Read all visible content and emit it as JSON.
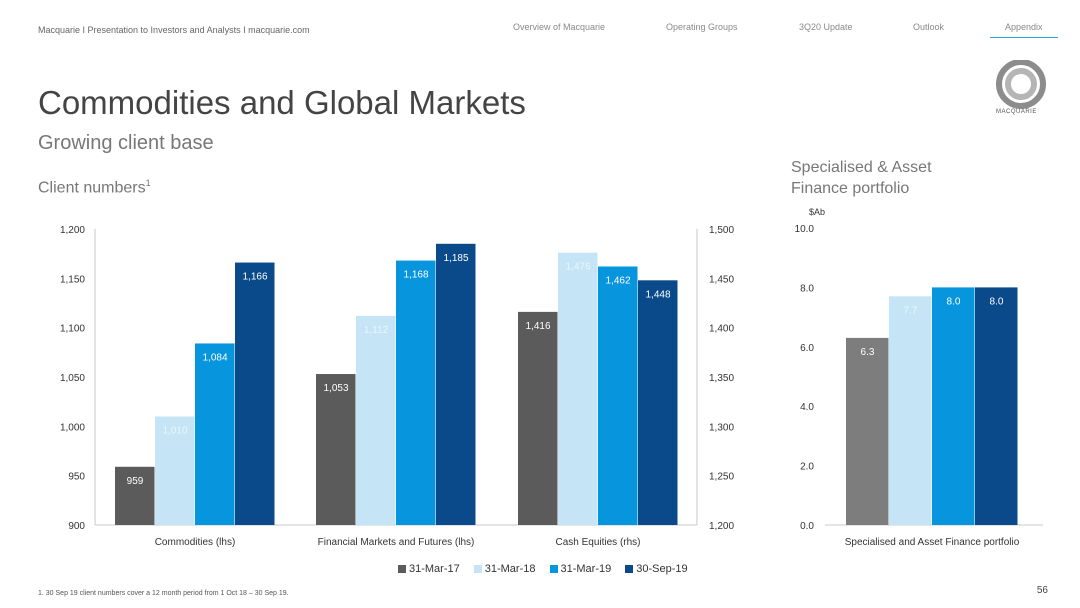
{
  "header": {
    "topline": "Macquarie  I  Presentation to Investors and Analysts I  macquarie.com",
    "nav": [
      {
        "label": "Overview of Macquarie"
      },
      {
        "label": "Operating Groups"
      },
      {
        "label": "3Q20 Update"
      },
      {
        "label": "Outlook"
      },
      {
        "label": "Appendix"
      }
    ],
    "active_nav": "Appendix",
    "logo_text": "MACQUARIE"
  },
  "page": {
    "title": "Commodities and Global Markets",
    "subtitle": "Growing client base",
    "client_label": "Client numbers",
    "client_label_sup": "1",
    "right_title_line1": "Specialised & Asset",
    "right_title_line2": "Finance portfolio",
    "footnote": "1. 30 Sep 19 client numbers cover a 12 month period from 1 Oct 18 – 30 Sep 19.",
    "page_number": "56"
  },
  "colors": {
    "s1": "#5b5b5b",
    "s2": "#c5e5f6",
    "s3": "#0795dd",
    "s4": "#0b4a8a",
    "s1_right": "#7d7d7d"
  },
  "chart_data": [
    {
      "type": "bar",
      "categories": [
        "Commodities (lhs)",
        "Financial Markets and Futures (lhs)",
        "Cash Equities (rhs)"
      ],
      "series": [
        {
          "name": "31-Mar-17",
          "values": [
            959,
            1053,
            1416
          ]
        },
        {
          "name": "31-Mar-18",
          "values": [
            1010,
            1112,
            1476
          ]
        },
        {
          "name": "31-Mar-19",
          "values": [
            1084,
            1168,
            1462
          ]
        },
        {
          "name": "30-Sep-19",
          "values": [
            1166,
            1185,
            1448
          ]
        }
      ],
      "axis_assignment": [
        "left",
        "left",
        "right"
      ],
      "ylim_left": [
        900,
        1200
      ],
      "yticks_left": [
        "900",
        "950",
        "1,000",
        "1,050",
        "1,100",
        "1,150",
        "1,200"
      ],
      "ylim_right": [
        1200,
        1500
      ],
      "yticks_right": [
        "1,200",
        "1,250",
        "1,300",
        "1,350",
        "1,400",
        "1,450",
        "1,500"
      ],
      "data_labels": [
        [
          "959",
          "1,053",
          "1,416"
        ],
        [
          "1,010",
          "1,112",
          "1,476"
        ],
        [
          "1,084",
          "1,168",
          "1,462"
        ],
        [
          "1,166",
          "1,185",
          "1,448"
        ]
      ],
      "legend": [
        "31-Mar-17",
        "31-Mar-18",
        "31-Mar-19",
        "30-Sep-19"
      ],
      "legend_position": "bottom",
      "grid": false
    },
    {
      "type": "bar",
      "categories": [
        "Specialised and Asset Finance portfolio"
      ],
      "series": [
        {
          "name": "31-Mar-17",
          "values": [
            6.3
          ]
        },
        {
          "name": "31-Mar-18",
          "values": [
            7.7
          ]
        },
        {
          "name": "31-Mar-19",
          "values": [
            8.0
          ]
        },
        {
          "name": "30-Sep-19",
          "values": [
            8.0
          ]
        }
      ],
      "ylabel": "$Ab",
      "ylim": [
        0,
        10
      ],
      "yticks": [
        "0.0",
        "2.0",
        "4.0",
        "6.0",
        "8.0",
        "10.0"
      ],
      "data_labels": [
        "6.3",
        "7.7",
        "8.0",
        "8.0"
      ],
      "grid": false
    }
  ]
}
